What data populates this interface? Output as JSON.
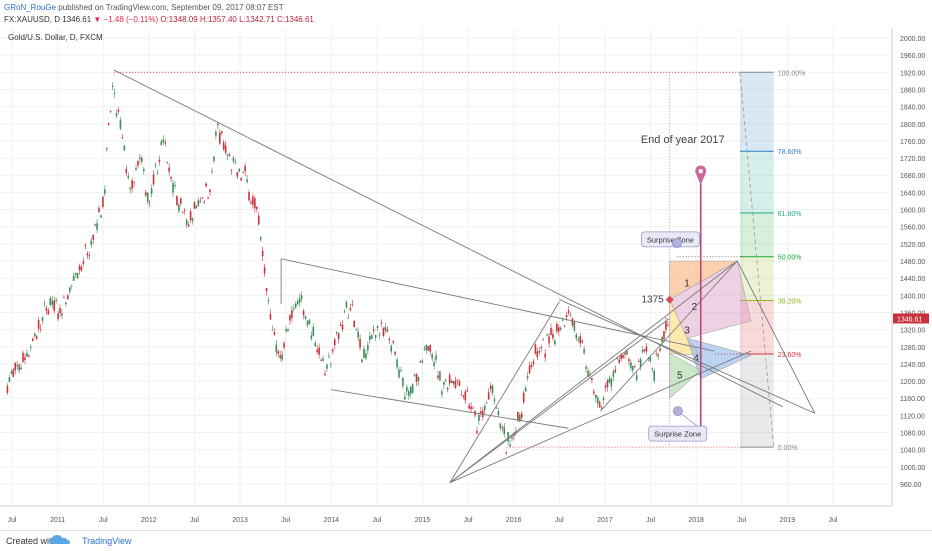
{
  "header": {
    "author": "GRoN_RouGe",
    "published_text": "published on TradingView.com, September 09, 2017 08:07 EST",
    "symbol": "FX:XAUUSD, D",
    "last": "1346.61",
    "change": "▼ −1.48 (−0.11%)",
    "open": "O:1348.09",
    "high": "H:1357.40",
    "low": "L:1342.71",
    "close": "C:1346.61"
  },
  "chart_data": {
    "type": "candlestick",
    "title": "Gold/U.S. Dollar, D, FXCM",
    "y_ticks": [
      960,
      1000,
      1040,
      1080,
      1120,
      1160,
      1200,
      1240,
      1280,
      1320,
      1360,
      1400,
      1440,
      1480,
      1520,
      1560,
      1600,
      1640,
      1680,
      1720,
      1760,
      1800,
      1840,
      1880,
      1920,
      1960,
      2000
    ],
    "x_ticks": [
      "Jul",
      "2011",
      "Jul",
      "2012",
      "Jul",
      "2013",
      "Jul",
      "2014",
      "Jul",
      "2015",
      "Jul",
      "2016",
      "Jul",
      "2017",
      "Jul",
      "2018",
      "Jul",
      "2019",
      "Jul"
    ],
    "price_path": [
      {
        "t": 2010.45,
        "p": 1195
      },
      {
        "t": 2010.6,
        "p": 1240
      },
      {
        "t": 2010.75,
        "p": 1300
      },
      {
        "t": 2010.9,
        "p": 1380
      },
      {
        "t": 2011.05,
        "p": 1360
      },
      {
        "t": 2011.2,
        "p": 1440
      },
      {
        "t": 2011.35,
        "p": 1520
      },
      {
        "t": 2011.5,
        "p": 1620
      },
      {
        "t": 2011.6,
        "p": 1880
      },
      {
        "t": 2011.68,
        "p": 1800
      },
      {
        "t": 2011.8,
        "p": 1640
      },
      {
        "t": 2011.92,
        "p": 1720
      },
      {
        "t": 2012.0,
        "p": 1600
      },
      {
        "t": 2012.15,
        "p": 1760
      },
      {
        "t": 2012.3,
        "p": 1640
      },
      {
        "t": 2012.42,
        "p": 1560
      },
      {
        "t": 2012.55,
        "p": 1620
      },
      {
        "t": 2012.68,
        "p": 1660
      },
      {
        "t": 2012.75,
        "p": 1790
      },
      {
        "t": 2012.9,
        "p": 1700
      },
      {
        "t": 2013.05,
        "p": 1680
      },
      {
        "t": 2013.2,
        "p": 1580
      },
      {
        "t": 2013.3,
        "p": 1400
      },
      {
        "t": 2013.42,
        "p": 1250
      },
      {
        "t": 2013.5,
        "p": 1300
      },
      {
        "t": 2013.65,
        "p": 1400
      },
      {
        "t": 2013.8,
        "p": 1310
      },
      {
        "t": 2013.95,
        "p": 1220
      },
      {
        "t": 2014.1,
        "p": 1330
      },
      {
        "t": 2014.2,
        "p": 1380
      },
      {
        "t": 2014.35,
        "p": 1250
      },
      {
        "t": 2014.5,
        "p": 1330
      },
      {
        "t": 2014.65,
        "p": 1290
      },
      {
        "t": 2014.8,
        "p": 1180
      },
      {
        "t": 2014.95,
        "p": 1200
      },
      {
        "t": 2015.08,
        "p": 1300
      },
      {
        "t": 2015.2,
        "p": 1190
      },
      {
        "t": 2015.35,
        "p": 1210
      },
      {
        "t": 2015.5,
        "p": 1160
      },
      {
        "t": 2015.6,
        "p": 1090
      },
      {
        "t": 2015.75,
        "p": 1180
      },
      {
        "t": 2015.92,
        "p": 1050
      },
      {
        "t": 2016.05,
        "p": 1100
      },
      {
        "t": 2016.2,
        "p": 1250
      },
      {
        "t": 2016.35,
        "p": 1280
      },
      {
        "t": 2016.5,
        "p": 1330
      },
      {
        "t": 2016.6,
        "p": 1370
      },
      {
        "t": 2016.75,
        "p": 1270
      },
      {
        "t": 2016.85,
        "p": 1200
      },
      {
        "t": 2016.95,
        "p": 1130
      },
      {
        "t": 2017.05,
        "p": 1200
      },
      {
        "t": 2017.2,
        "p": 1260
      },
      {
        "t": 2017.35,
        "p": 1220
      },
      {
        "t": 2017.45,
        "p": 1290
      },
      {
        "t": 2017.52,
        "p": 1210
      },
      {
        "t": 2017.62,
        "p": 1280
      },
      {
        "t": 2017.69,
        "p": 1346
      }
    ],
    "fib_levels": [
      {
        "ratio": "100.00%",
        "price": 1920,
        "color": "#888888"
      },
      {
        "ratio": "78.60%",
        "price": 1736,
        "color": "#2b7fc9"
      },
      {
        "ratio": "61.80%",
        "price": 1592,
        "color": "#1fa88a"
      },
      {
        "ratio": "50.00%",
        "price": 1490,
        "color": "#1fa836"
      },
      {
        "ratio": "38.20%",
        "price": 1388,
        "color": "#8fb818"
      },
      {
        "ratio": "23.60%",
        "price": 1263,
        "color": "#d6303a"
      },
      {
        "ratio": "0.00%",
        "price": 1046,
        "color": "#888888"
      }
    ],
    "annotations": {
      "end_label": "End of year 2017",
      "price_label": "1375",
      "zone_upper": "Surprise Zone",
      "zone_lower": "Surprise Zone",
      "zones": [
        "1",
        "2",
        "3",
        "4",
        "5"
      ]
    },
    "grid": true
  },
  "footer": {
    "created": "Created with",
    "brand": "TradingView"
  }
}
